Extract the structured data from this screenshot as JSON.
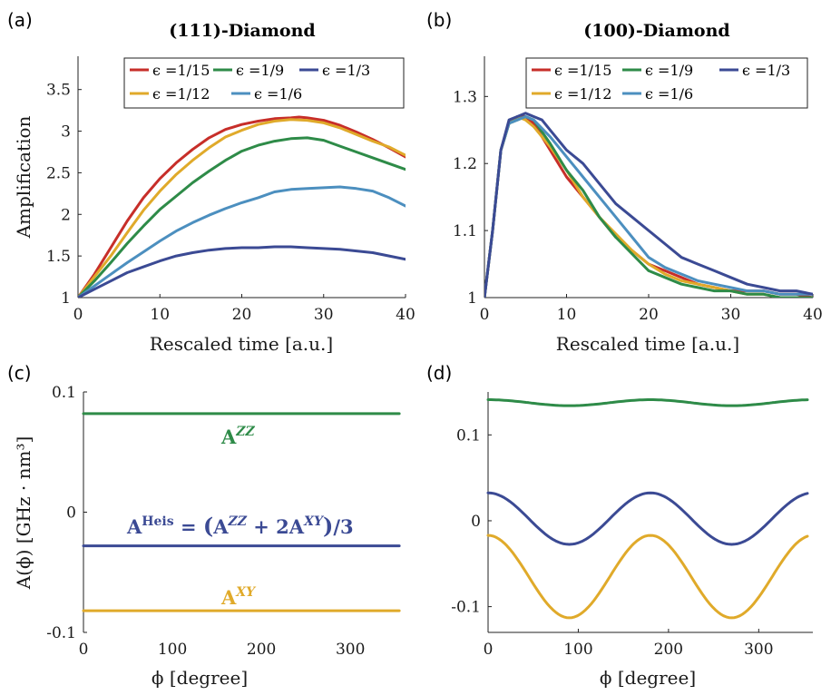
{
  "colors": {
    "red": "#c72e29",
    "yellow": "#e0aa2a",
    "green": "#2e8b48",
    "lightblue": "#4c8fbf",
    "darkblue": "#3b4a94"
  },
  "chart_data": [
    {
      "id": "a",
      "panel_label": "(a)",
      "type": "line",
      "title": "(111)-Diamond",
      "xlabel": "Rescaled time [a.u.]",
      "ylabel": "Amplification",
      "xlim": [
        0,
        40
      ],
      "ylim": [
        1,
        3.9
      ],
      "xticks": [
        0,
        10,
        20,
        30,
        40
      ],
      "yticks": [
        1,
        1.5,
        2,
        2.5,
        3,
        3.5
      ],
      "xtick_labels": [
        "0",
        "10",
        "20",
        "30",
        "40"
      ],
      "ytick_labels": [
        "1",
        "1.5",
        "2",
        "2.5",
        "3",
        "3.5"
      ],
      "legend": [
        "ϵ =1/15",
        "ϵ =1/9",
        "ϵ =1/3",
        "ϵ =1/12",
        "ϵ =1/6"
      ],
      "series": [
        {
          "name": "ϵ =1/15",
          "color": "red",
          "x": [
            0,
            2,
            4,
            6,
            8,
            10,
            12,
            14,
            16,
            18,
            20,
            22,
            24,
            26,
            27,
            28,
            30,
            32,
            34,
            36,
            38,
            40
          ],
          "values": [
            1.0,
            1.28,
            1.6,
            1.92,
            2.2,
            2.43,
            2.62,
            2.78,
            2.92,
            3.02,
            3.08,
            3.12,
            3.15,
            3.16,
            3.17,
            3.16,
            3.13,
            3.07,
            2.99,
            2.9,
            2.8,
            2.69
          ]
        },
        {
          "name": "ϵ =1/12",
          "color": "yellow",
          "x": [
            0,
            2,
            4,
            6,
            8,
            10,
            12,
            14,
            16,
            18,
            20,
            22,
            24,
            26,
            28,
            30,
            32,
            34,
            36,
            38,
            40
          ],
          "values": [
            1.0,
            1.25,
            1.5,
            1.78,
            2.05,
            2.28,
            2.48,
            2.65,
            2.8,
            2.93,
            3.01,
            3.08,
            3.12,
            3.14,
            3.13,
            3.1,
            3.04,
            2.96,
            2.88,
            2.81,
            2.71
          ]
        },
        {
          "name": "ϵ =1/9",
          "color": "green",
          "x": [
            0,
            2,
            4,
            6,
            8,
            10,
            12,
            14,
            16,
            18,
            20,
            22,
            24,
            26,
            28,
            30,
            32,
            34,
            36,
            38,
            40
          ],
          "values": [
            1.0,
            1.2,
            1.42,
            1.65,
            1.86,
            2.06,
            2.22,
            2.38,
            2.52,
            2.65,
            2.76,
            2.83,
            2.88,
            2.91,
            2.92,
            2.89,
            2.82,
            2.75,
            2.68,
            2.61,
            2.54
          ]
        },
        {
          "name": "ϵ =1/6",
          "color": "lightblue",
          "x": [
            0,
            2,
            4,
            6,
            8,
            10,
            12,
            14,
            16,
            18,
            20,
            22,
            24,
            26,
            28,
            30,
            32,
            34,
            36,
            38,
            40
          ],
          "values": [
            1.0,
            1.14,
            1.28,
            1.42,
            1.55,
            1.68,
            1.8,
            1.9,
            1.99,
            2.07,
            2.14,
            2.2,
            2.27,
            2.3,
            2.31,
            2.32,
            2.33,
            2.31,
            2.28,
            2.2,
            2.1
          ]
        },
        {
          "name": "ϵ =1/3",
          "color": "darkblue",
          "x": [
            0,
            2,
            4,
            6,
            8,
            10,
            12,
            14,
            16,
            18,
            20,
            22,
            24,
            26,
            28,
            30,
            32,
            34,
            36,
            38,
            40
          ],
          "values": [
            1.0,
            1.1,
            1.2,
            1.3,
            1.37,
            1.44,
            1.5,
            1.54,
            1.57,
            1.59,
            1.6,
            1.6,
            1.61,
            1.61,
            1.6,
            1.59,
            1.58,
            1.56,
            1.54,
            1.5,
            1.46
          ]
        }
      ]
    },
    {
      "id": "b",
      "panel_label": "(b)",
      "type": "line",
      "title": "(100)-Diamond",
      "xlabel": "Rescaled time [a.u.]",
      "ylabel": "",
      "xlim": [
        0,
        40
      ],
      "ylim": [
        1,
        1.36
      ],
      "xticks": [
        0,
        10,
        20,
        30,
        40
      ],
      "yticks": [
        1,
        1.1,
        1.2,
        1.3
      ],
      "xtick_labels": [
        "0",
        "10",
        "20",
        "30",
        "40"
      ],
      "ytick_labels": [
        "1",
        "1.1",
        "1.2",
        "1.3"
      ],
      "legend": [
        "ϵ =1/15",
        "ϵ =1/9",
        "ϵ =1/3",
        "ϵ =1/12",
        "ϵ =1/6"
      ],
      "series": [
        {
          "name": "ϵ =1/15",
          "color": "red",
          "x": [
            0,
            1,
            2,
            3,
            4,
            5,
            6,
            8,
            10,
            12,
            14,
            16,
            18,
            20,
            22,
            24,
            26,
            28,
            30,
            32,
            34,
            36,
            38,
            40
          ],
          "values": [
            1.0,
            1.1,
            1.22,
            1.26,
            1.27,
            1.27,
            1.26,
            1.22,
            1.18,
            1.15,
            1.12,
            1.09,
            1.07,
            1.05,
            1.04,
            1.03,
            1.02,
            1.015,
            1.01,
            1.01,
            1.01,
            1.005,
            1.005,
            1.0
          ]
        },
        {
          "name": "ϵ =1/12",
          "color": "yellow",
          "x": [
            0,
            1,
            2,
            3,
            4,
            5,
            6,
            8,
            10,
            12,
            14,
            16,
            18,
            20,
            22,
            24,
            26,
            28,
            30,
            32,
            34,
            36,
            38,
            40
          ],
          "values": [
            1.0,
            1.1,
            1.22,
            1.26,
            1.27,
            1.265,
            1.255,
            1.225,
            1.19,
            1.15,
            1.12,
            1.095,
            1.07,
            1.05,
            1.035,
            1.025,
            1.02,
            1.015,
            1.01,
            1.005,
            1.005,
            1.0,
            1.0,
            1.0
          ]
        },
        {
          "name": "ϵ =1/9",
          "color": "green",
          "x": [
            0,
            1,
            2,
            3,
            4,
            5,
            6,
            8,
            10,
            12,
            14,
            16,
            18,
            20,
            22,
            24,
            26,
            28,
            30,
            32,
            34,
            36,
            38,
            40
          ],
          "values": [
            1.0,
            1.1,
            1.22,
            1.26,
            1.265,
            1.27,
            1.265,
            1.23,
            1.19,
            1.16,
            1.12,
            1.09,
            1.065,
            1.04,
            1.03,
            1.02,
            1.015,
            1.01,
            1.01,
            1.005,
            1.005,
            1.0,
            1.0,
            1.0
          ]
        },
        {
          "name": "ϵ =1/6",
          "color": "lightblue",
          "x": [
            0,
            1,
            2,
            3,
            4,
            5,
            6,
            8,
            10,
            12,
            14,
            16,
            18,
            20,
            22,
            24,
            26,
            28,
            30,
            32,
            34,
            36,
            38,
            40
          ],
          "values": [
            1.0,
            1.1,
            1.22,
            1.26,
            1.265,
            1.27,
            1.265,
            1.24,
            1.21,
            1.18,
            1.15,
            1.12,
            1.09,
            1.06,
            1.045,
            1.035,
            1.025,
            1.02,
            1.015,
            1.01,
            1.01,
            1.005,
            1.005,
            1.005
          ]
        },
        {
          "name": "ϵ =1/3",
          "color": "darkblue",
          "x": [
            0,
            1,
            2,
            3,
            4,
            5,
            6,
            7,
            8,
            10,
            12,
            14,
            16,
            18,
            20,
            22,
            24,
            26,
            28,
            30,
            32,
            34,
            36,
            38,
            40
          ],
          "values": [
            1.0,
            1.1,
            1.22,
            1.265,
            1.27,
            1.275,
            1.27,
            1.265,
            1.25,
            1.22,
            1.2,
            1.17,
            1.14,
            1.12,
            1.1,
            1.08,
            1.06,
            1.05,
            1.04,
            1.03,
            1.02,
            1.015,
            1.01,
            1.01,
            1.005
          ]
        }
      ]
    },
    {
      "id": "c",
      "panel_label": "(c)",
      "type": "line",
      "title": "",
      "xlabel": "ϕ [degree]",
      "ylabel": "A(ϕ) [GHz · nm³]",
      "xlim": [
        0,
        360
      ],
      "ylim": [
        -0.1,
        0.1
      ],
      "xticks": [
        0,
        100,
        200,
        300
      ],
      "yticks": [
        -0.1,
        0,
        0.1
      ],
      "xtick_labels": [
        "0",
        "100",
        "200",
        "300"
      ],
      "ytick_labels": [
        "-0.1",
        "0",
        "0.1"
      ],
      "annotations": [
        {
          "key": "zz",
          "base": "A",
          "sup": "ZZ",
          "color": "green"
        },
        {
          "key": "heis",
          "text": "A^Heis = (A^ZZ + 2A^XY)/3",
          "color": "darkblue"
        },
        {
          "key": "xy",
          "base": "A",
          "sup": "XY",
          "color": "yellow"
        }
      ],
      "series": [
        {
          "name": "A^ZZ",
          "color": "green",
          "x": [
            0,
            355
          ],
          "values": [
            0.082,
            0.082
          ]
        },
        {
          "name": "A^Heis",
          "color": "darkblue",
          "x": [
            0,
            355
          ],
          "values": [
            -0.028,
            -0.028
          ]
        },
        {
          "name": "A^XY",
          "color": "yellow",
          "x": [
            0,
            355
          ],
          "values": [
            -0.082,
            -0.082
          ]
        }
      ]
    },
    {
      "id": "d",
      "panel_label": "(d)",
      "type": "line",
      "title": "",
      "xlabel": "ϕ [degree]",
      "ylabel": "",
      "xlim": [
        0,
        360
      ],
      "ylim": [
        -0.13,
        0.15
      ],
      "xticks": [
        0,
        100,
        200,
        300
      ],
      "yticks": [
        -0.1,
        0,
        0.1
      ],
      "xtick_labels": [
        "0",
        "100",
        "200",
        "300"
      ],
      "ytick_labels": [
        "-0.1",
        "0",
        "0.1"
      ],
      "series": [
        {
          "name": "A^ZZ",
          "color": "green",
          "function": "cos2",
          "mean": 0.1375,
          "amplitude": 0.0035,
          "xmax": 355
        },
        {
          "name": "A^Heis",
          "color": "darkblue",
          "function": "cos2",
          "mean": 0.0025,
          "amplitude": 0.03,
          "xmax": 355
        },
        {
          "name": "A^XY",
          "color": "yellow",
          "function": "cos2",
          "mean": -0.065,
          "amplitude": 0.048,
          "xmax": 355
        }
      ]
    }
  ]
}
